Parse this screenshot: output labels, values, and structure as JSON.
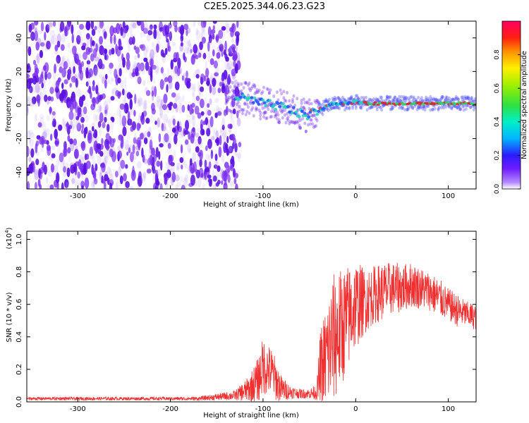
{
  "figure_title": "C2E5.2025.344.06.23.G23",
  "chart_data": [
    {
      "type": "heatmap",
      "title": "C2E5.2025.344.06.23.G23",
      "xlabel": "Height of straight line (km)",
      "ylabel": "Frequency (Hz)",
      "xlim": [
        -355,
        130
      ],
      "ylim": [
        -50,
        50
      ],
      "xticks": [
        -300,
        -200,
        -100,
        0,
        100
      ],
      "yticks": [
        -40,
        -20,
        0,
        20,
        40
      ],
      "colorbar": {
        "label": "Normalized spectral amplitude",
        "range": [
          0,
          1
        ],
        "ticks": [
          0.0,
          0.2,
          0.4,
          0.6,
          0.8
        ],
        "colormap": "purple-blue-cyan-green-yellow-orange-red-magenta"
      },
      "noise_region_km": [
        -355,
        -135
      ],
      "signal_trace": {
        "x": [
          -140,
          -120,
          -100,
          -80,
          -70,
          -60,
          -52,
          -40,
          -30,
          -20,
          -10,
          0,
          10,
          30,
          60,
          100,
          130
        ],
        "y": [
          6,
          4,
          1,
          -1,
          -3,
          -5,
          -6,
          -3,
          0,
          1,
          1,
          2,
          1,
          1,
          1,
          1,
          1
        ],
        "description_free": true
      },
      "colors": {
        "noise": "#7a2df0",
        "strong": "#e01010",
        "mid": "#33e070"
      }
    },
    {
      "type": "line",
      "xlabel": "Height of straight line (km)",
      "ylabel": "SNR (10 * v/v)",
      "exponent_label": "(x10",
      "exponent_power": "4",
      "exponent_close": ")",
      "xlim": [
        -355,
        130
      ],
      "ylim": [
        0,
        1.05
      ],
      "xticks": [
        -300,
        -200,
        -100,
        0,
        100
      ],
      "yticks": [
        0.0,
        0.2,
        0.4,
        0.6,
        0.8,
        1.0
      ],
      "ytick_labels": [
        "0.0",
        "0.2",
        "0.4",
        "0.6",
        "0.8",
        "1.0"
      ],
      "series": [
        {
          "name": "SNR",
          "color": "#f03030",
          "envelope_x": [
            -355,
            -300,
            -250,
            -200,
            -170,
            -150,
            -130,
            -115,
            -105,
            -100,
            -95,
            -90,
            -85,
            -80,
            -70,
            -60,
            -50,
            -42,
            -38,
            -30,
            -25,
            -20,
            -15,
            -10,
            -5,
            0,
            10,
            20,
            30,
            40,
            50,
            60,
            70,
            80,
            90,
            100,
            110,
            120,
            130
          ],
          "envelope_mean": [
            0.02,
            0.02,
            0.02,
            0.02,
            0.02,
            0.03,
            0.04,
            0.08,
            0.14,
            0.22,
            0.2,
            0.18,
            0.12,
            0.08,
            0.06,
            0.05,
            0.05,
            0.06,
            0.2,
            0.3,
            0.38,
            0.42,
            0.46,
            0.5,
            0.55,
            0.6,
            0.62,
            0.66,
            0.68,
            0.7,
            0.7,
            0.72,
            0.7,
            0.68,
            0.64,
            0.6,
            0.56,
            0.54,
            0.52
          ],
          "envelope_spread": [
            0.01,
            0.01,
            0.01,
            0.01,
            0.012,
            0.02,
            0.03,
            0.08,
            0.14,
            0.18,
            0.16,
            0.15,
            0.12,
            0.08,
            0.04,
            0.03,
            0.03,
            0.05,
            0.25,
            0.35,
            0.4,
            0.4,
            0.36,
            0.34,
            0.3,
            0.28,
            0.2,
            0.18,
            0.18,
            0.16,
            0.15,
            0.14,
            0.13,
            0.12,
            0.12,
            0.1,
            0.1,
            0.08,
            0.08
          ]
        }
      ]
    }
  ]
}
